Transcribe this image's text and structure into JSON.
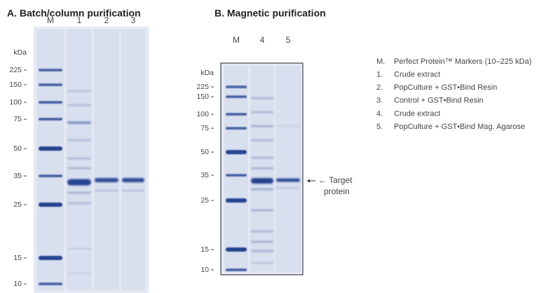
{
  "panels": [
    {
      "title": "A. Batch/column purification",
      "lanes": [
        "M",
        "1",
        "2",
        "3"
      ],
      "unit": "kDa",
      "markers": [
        225,
        150,
        100,
        75,
        50,
        35,
        25,
        15,
        10
      ]
    },
    {
      "title": "B. Magnetic purification",
      "lanes": [
        "M",
        "4",
        "5"
      ],
      "unit": "kDa",
      "markers": [
        225,
        150,
        100,
        75,
        50,
        35,
        25,
        15,
        10
      ]
    }
  ],
  "legend": [
    {
      "key": "M.",
      "text": "Perfect Protein™ Markers (10–225 kDa)"
    },
    {
      "key": "1.",
      "text": "Crude extract"
    },
    {
      "key": "2.",
      "text": "PopCulture + GST•Bind Resin"
    },
    {
      "key": "3.",
      "text": "Control + GST•Bind Resin"
    },
    {
      "key": "4.",
      "text": "Crude extract"
    },
    {
      "key": "5.",
      "text": "PopCulture + GST•Bind Mag. Agarose"
    }
  ],
  "annotation": [
    "← Target",
    "protein"
  ]
}
